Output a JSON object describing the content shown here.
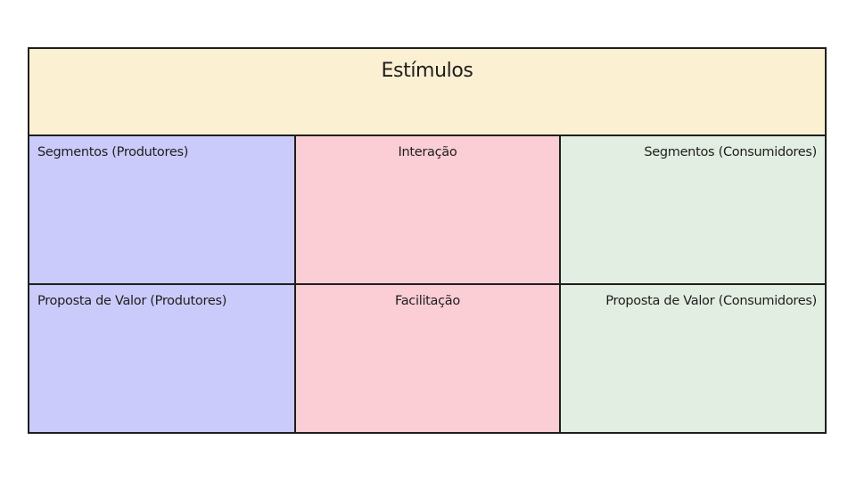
{
  "canvas": {
    "stimuli": {
      "label": "Estímulos"
    },
    "cells": {
      "segments_producers": "Segmentos (Produtores)",
      "interaction": "Interação",
      "segments_consumers": "Segmentos (Consumidores)",
      "value_prop_producers": "Proposta de Valor (Produtores)",
      "facilitation": "Facilitação",
      "value_prop_consumers": "Proposta de Valor (Consumidores)"
    }
  },
  "colors": {
    "stimuli": "#fbf0d1",
    "producers": "#cbcbfb",
    "core": "#fbcdd5",
    "consumers": "#e2eee1",
    "border": "#1e1e1e"
  }
}
